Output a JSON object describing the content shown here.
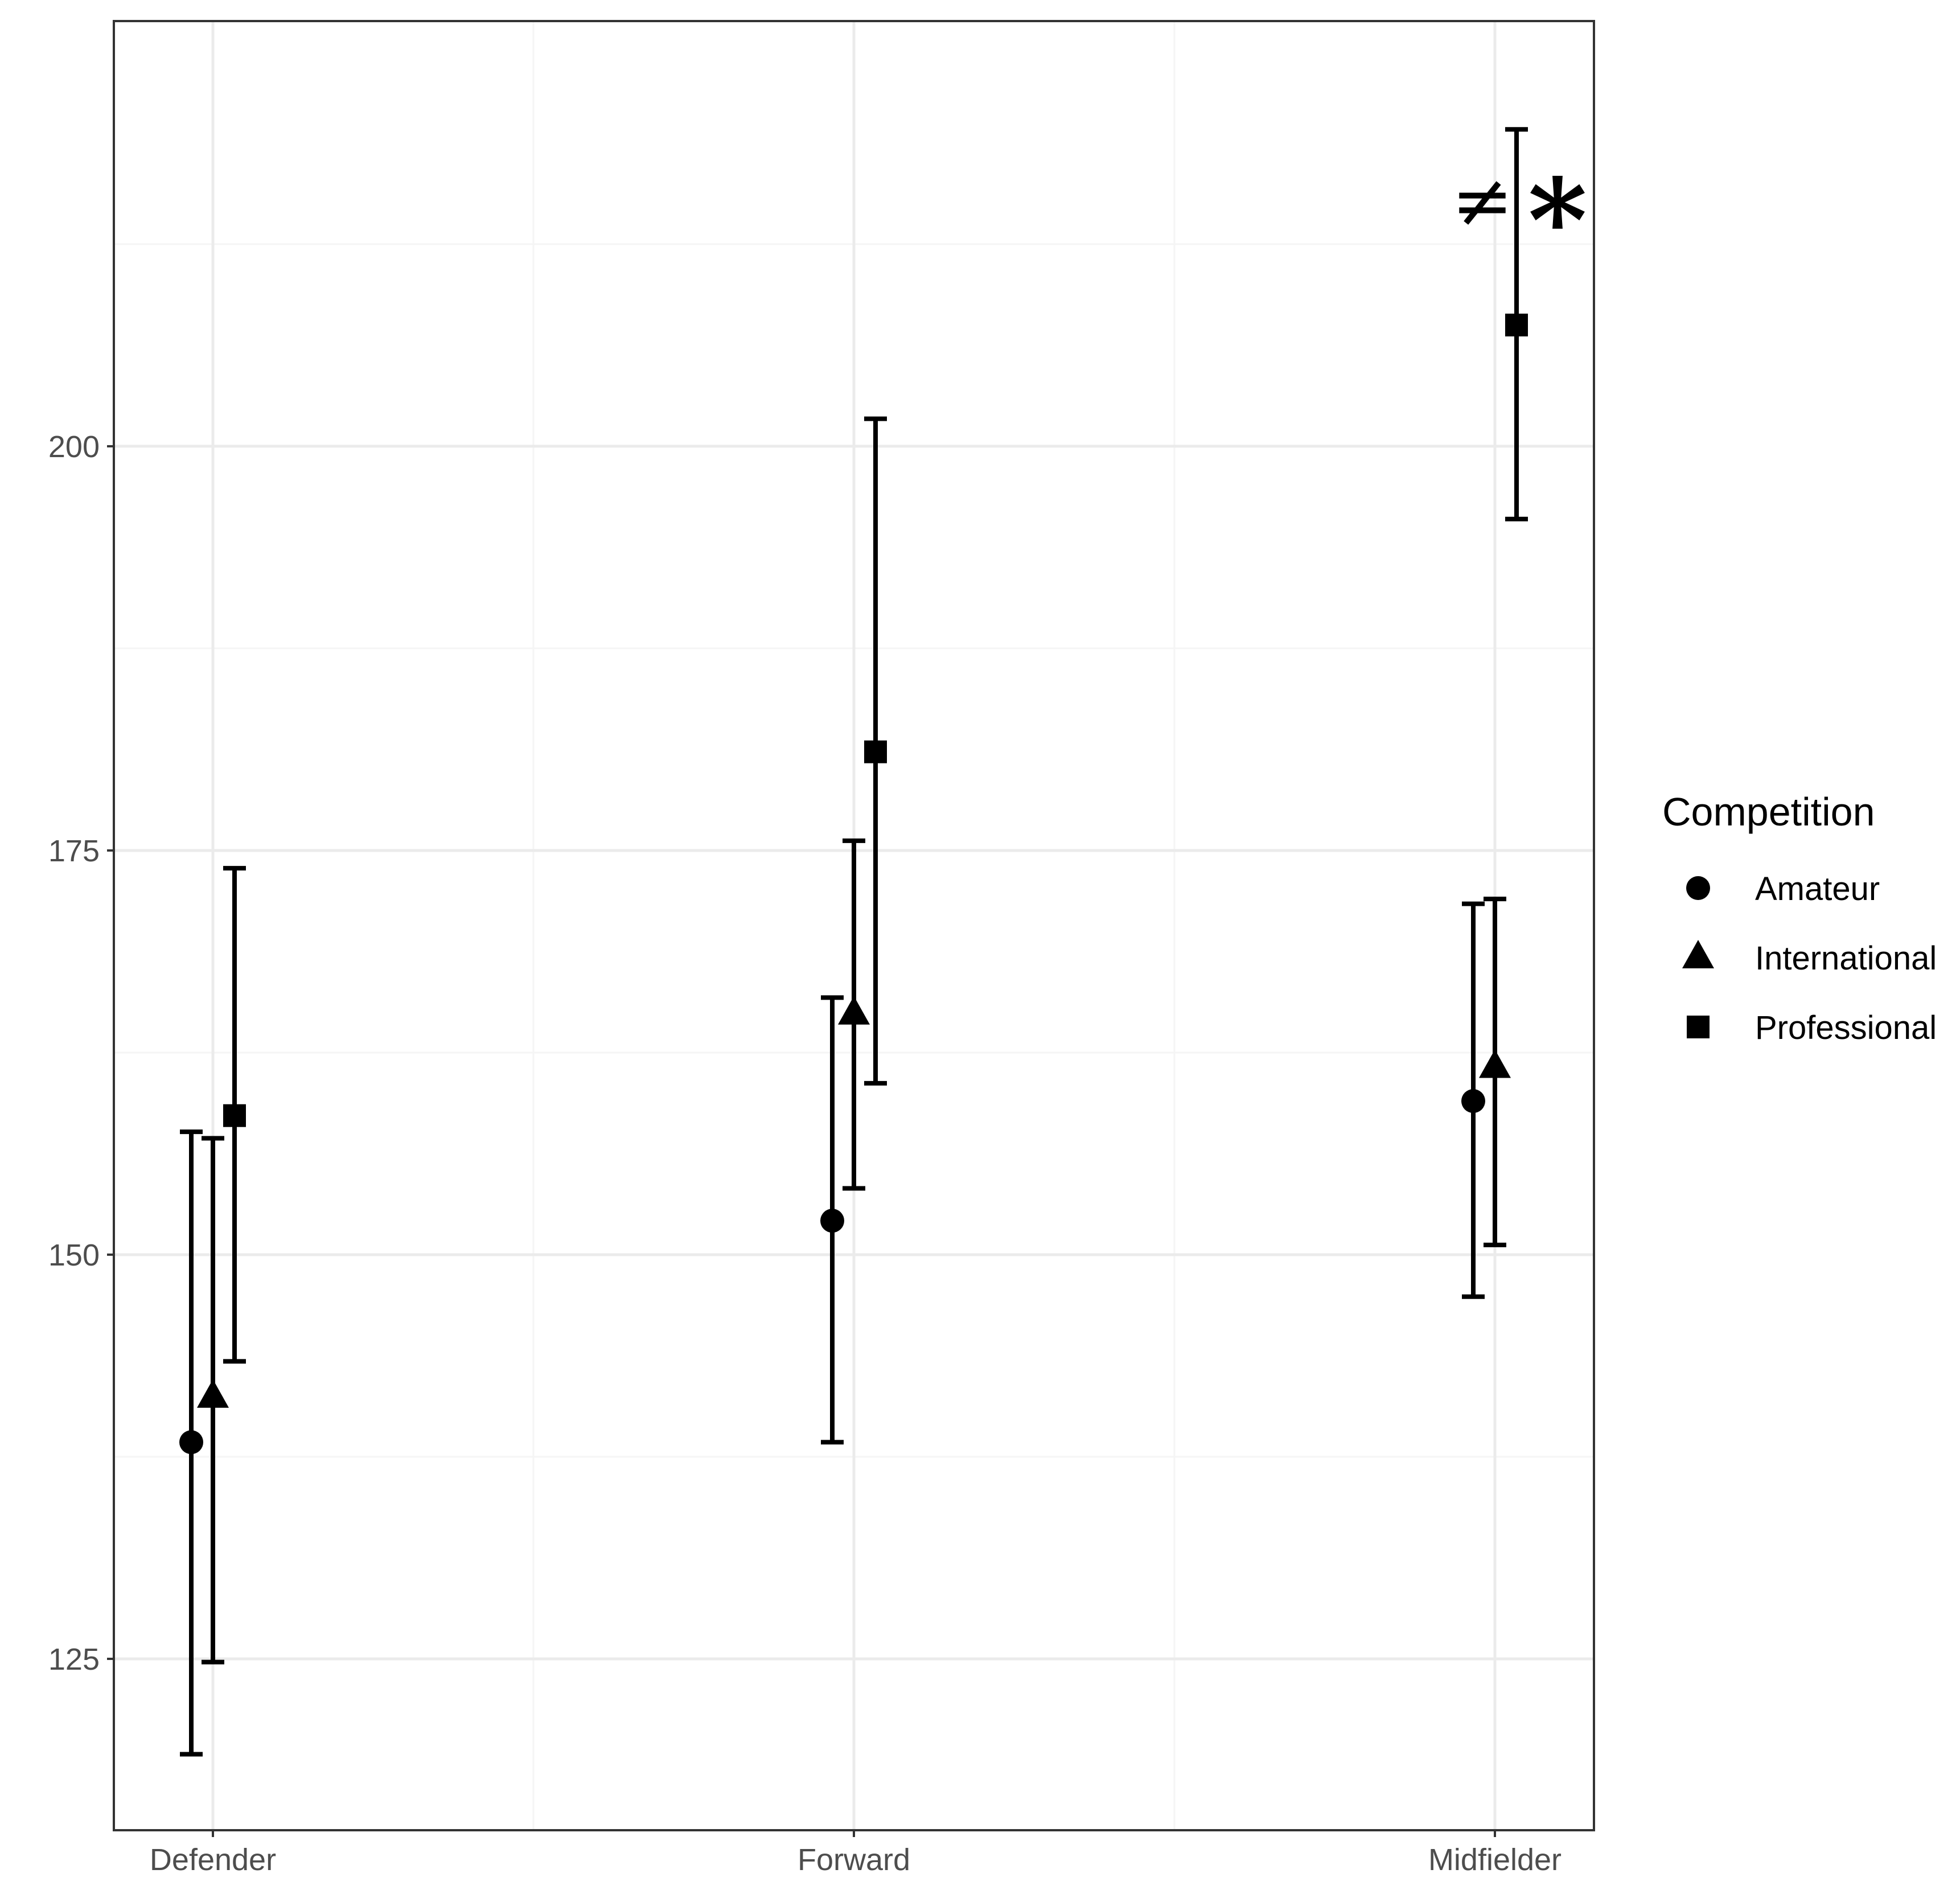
{
  "chart_data": {
    "type": "scatter",
    "title": "",
    "xlabel": "",
    "ylabel": "",
    "categories": [
      "Defender",
      "Forward",
      "Midfielder"
    ],
    "ylim": [
      114.4,
      226.3
    ],
    "yticks": [
      125,
      150,
      175,
      200
    ],
    "grid": true,
    "legend": {
      "title": "Competition",
      "placement": "right",
      "entries": [
        {
          "name": "Amateur",
          "shape": "circle"
        },
        {
          "name": "International",
          "shape": "triangle"
        },
        {
          "name": "Professional",
          "shape": "square"
        }
      ]
    },
    "series": [
      {
        "name": "Amateur",
        "shape": "circle",
        "values": [
          138.4,
          152.1,
          159.5
        ],
        "lower": [
          119.1,
          138.4,
          147.4
        ],
        "upper": [
          157.6,
          165.9,
          171.7
        ]
      },
      {
        "name": "International",
        "shape": "triangle",
        "values": [
          141.2,
          164.9,
          161.6
        ],
        "lower": [
          124.8,
          154.1,
          150.6
        ],
        "upper": [
          157.2,
          175.6,
          172.0
        ]
      },
      {
        "name": "Professional",
        "shape": "square",
        "values": [
          158.6,
          181.1,
          207.5
        ],
        "lower": [
          143.4,
          160.6,
          195.5
        ],
        "upper": [
          173.9,
          201.7,
          219.6
        ]
      }
    ],
    "annotations": [
      {
        "text": "≠",
        "category": "Midfielder",
        "series": "Professional"
      },
      {
        "text": "*",
        "category": "Midfielder",
        "series": "Professional"
      }
    ],
    "colors": {
      "marks": "#000000",
      "grid_major": "#ebebeb",
      "grid_minor": "#f5f5f5",
      "panel_border": "#333333",
      "tick_text": "#4d4d4d"
    }
  }
}
